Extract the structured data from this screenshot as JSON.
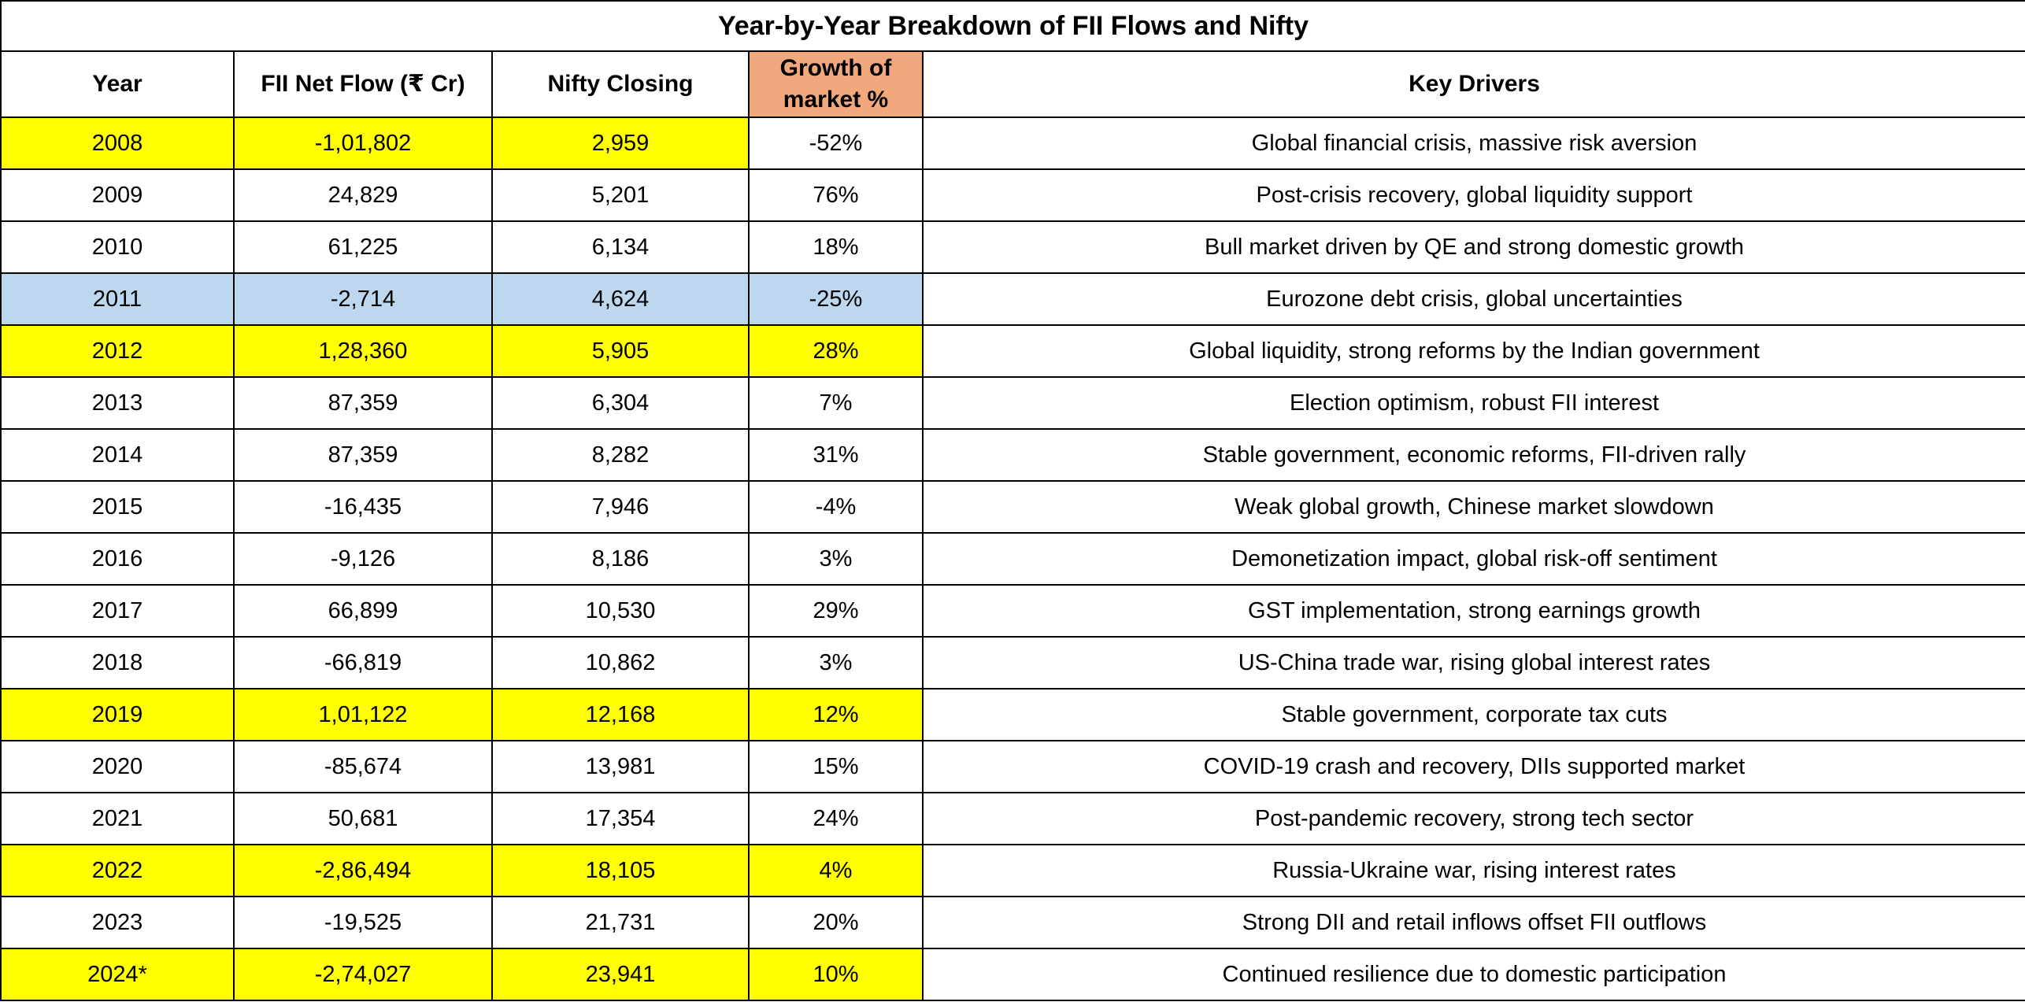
{
  "title": "Year-by-Year Breakdown of FII Flows and Nifty",
  "colors": {
    "highlight_yellow": "#FFFF00",
    "highlight_blue": "#BDD7EE",
    "growth_header_orange": "#F0A87C",
    "border_black": "#000000"
  },
  "table": {
    "columns": [
      "Year",
      "FII Net Flow (₹ Cr)",
      "Nifty Closing",
      "Growth of market %",
      "Key Drivers"
    ],
    "rows": [
      {
        "year": "2008",
        "fii": "-1,01,802",
        "nifty": "2,959",
        "growth": "-52%",
        "drivers": "Global financial crisis, massive risk aversion",
        "highlight": "yellow3"
      },
      {
        "year": "2009",
        "fii": "24,829",
        "nifty": "5,201",
        "growth": "76%",
        "drivers": "Post-crisis recovery, global liquidity support",
        "highlight": "none"
      },
      {
        "year": "2010",
        "fii": "61,225",
        "nifty": "6,134",
        "growth": "18%",
        "drivers": "Bull market driven by QE and strong domestic growth",
        "highlight": "none"
      },
      {
        "year": "2011",
        "fii": "-2,714",
        "nifty": "4,624",
        "growth": "-25%",
        "drivers": "Eurozone debt crisis, global uncertainties",
        "highlight": "blue"
      },
      {
        "year": "2012",
        "fii": "1,28,360",
        "nifty": "5,905",
        "growth": "28%",
        "drivers": "Global liquidity, strong reforms by the Indian government",
        "highlight": "yellow"
      },
      {
        "year": "2013",
        "fii": "87,359",
        "nifty": "6,304",
        "growth": "7%",
        "drivers": "Election optimism, robust FII interest",
        "highlight": "none"
      },
      {
        "year": "2014",
        "fii": "87,359",
        "nifty": "8,282",
        "growth": "31%",
        "drivers": "Stable government, economic reforms, FII-driven rally",
        "highlight": "none"
      },
      {
        "year": "2015",
        "fii": "-16,435",
        "nifty": "7,946",
        "growth": "-4%",
        "drivers": "Weak global growth, Chinese market slowdown",
        "highlight": "none"
      },
      {
        "year": "2016",
        "fii": "-9,126",
        "nifty": "8,186",
        "growth": "3%",
        "drivers": "Demonetization impact, global risk-off sentiment",
        "highlight": "none"
      },
      {
        "year": "2017",
        "fii": "66,899",
        "nifty": "10,530",
        "growth": "29%",
        "drivers": "GST implementation, strong earnings growth",
        "highlight": "none"
      },
      {
        "year": "2018",
        "fii": "-66,819",
        "nifty": "10,862",
        "growth": "3%",
        "drivers": "US-China trade war, rising global interest rates",
        "highlight": "none"
      },
      {
        "year": "2019",
        "fii": "1,01,122",
        "nifty": "12,168",
        "growth": "12%",
        "drivers": "Stable government, corporate tax cuts",
        "highlight": "yellow"
      },
      {
        "year": "2020",
        "fii": "-85,674",
        "nifty": "13,981",
        "growth": "15%",
        "drivers": "COVID-19 crash and recovery, DIIs supported market",
        "highlight": "none"
      },
      {
        "year": "2021",
        "fii": "50,681",
        "nifty": "17,354",
        "growth": "24%",
        "drivers": "Post-pandemic recovery, strong tech sector",
        "highlight": "none"
      },
      {
        "year": "2022",
        "fii": "-2,86,494",
        "nifty": "18,105",
        "growth": "4%",
        "drivers": "Russia-Ukraine war, rising interest rates",
        "highlight": "yellow"
      },
      {
        "year": "2023",
        "fii": "-19,525",
        "nifty": "21,731",
        "growth": "20%",
        "drivers": "Strong DII and retail inflows offset FII outflows",
        "highlight": "none"
      },
      {
        "year": "2024*",
        "fii": "-2,74,027",
        "nifty": "23,941",
        "growth": "10%",
        "drivers": "Continued resilience due to domestic participation",
        "highlight": "yellow"
      }
    ]
  },
  "chart_data": {
    "type": "table",
    "title": "Year-by-Year Breakdown of FII Flows and Nifty",
    "columns": [
      "Year",
      "FII Net Flow (₹ Cr)",
      "Nifty Closing",
      "Growth of market %",
      "Key Drivers"
    ],
    "years": [
      "2008",
      "2009",
      "2010",
      "2011",
      "2012",
      "2013",
      "2014",
      "2015",
      "2016",
      "2017",
      "2018",
      "2019",
      "2020",
      "2021",
      "2022",
      "2023",
      "2024*"
    ],
    "fii_net_flow_cr": [
      -101802,
      24829,
      61225,
      -2714,
      128360,
      87359,
      87359,
      -16435,
      -9126,
      66899,
      -66819,
      101122,
      -85674,
      50681,
      -286494,
      -19525,
      -274027
    ],
    "nifty_closing": [
      2959,
      5201,
      6134,
      4624,
      5905,
      6304,
      8282,
      7946,
      8186,
      10530,
      10862,
      12168,
      13981,
      17354,
      18105,
      21731,
      23941
    ],
    "growth_of_market_pct": [
      -52,
      76,
      18,
      -25,
      28,
      7,
      31,
      -4,
      3,
      29,
      3,
      12,
      15,
      24,
      4,
      20,
      10
    ],
    "key_drivers": [
      "Global financial crisis, massive risk aversion",
      "Post-crisis recovery, global liquidity support",
      "Bull market driven by QE and strong domestic growth",
      "Eurozone debt crisis, global uncertainties",
      "Global liquidity, strong reforms by the Indian government",
      "Election optimism, robust FII interest",
      "Stable government, economic reforms, FII-driven rally",
      "Weak global growth, Chinese market slowdown",
      "Demonetization impact, global risk-off sentiment",
      "GST implementation, strong earnings growth",
      "US-China trade war, rising global interest rates",
      "Stable government, corporate tax cuts",
      "COVID-19 crash and recovery, DIIs supported market",
      "Post-pandemic recovery, strong tech sector",
      "Russia-Ukraine war, rising interest rates",
      "Strong DII and retail inflows offset FII outflows",
      "Continued resilience due to domestic participation"
    ],
    "highlighted_rows": {
      "yellow_full": [
        "2012",
        "2019",
        "2022",
        "2024*"
      ],
      "yellow_first_three_cells": [
        "2008"
      ],
      "blue_full": [
        "2011"
      ]
    }
  }
}
